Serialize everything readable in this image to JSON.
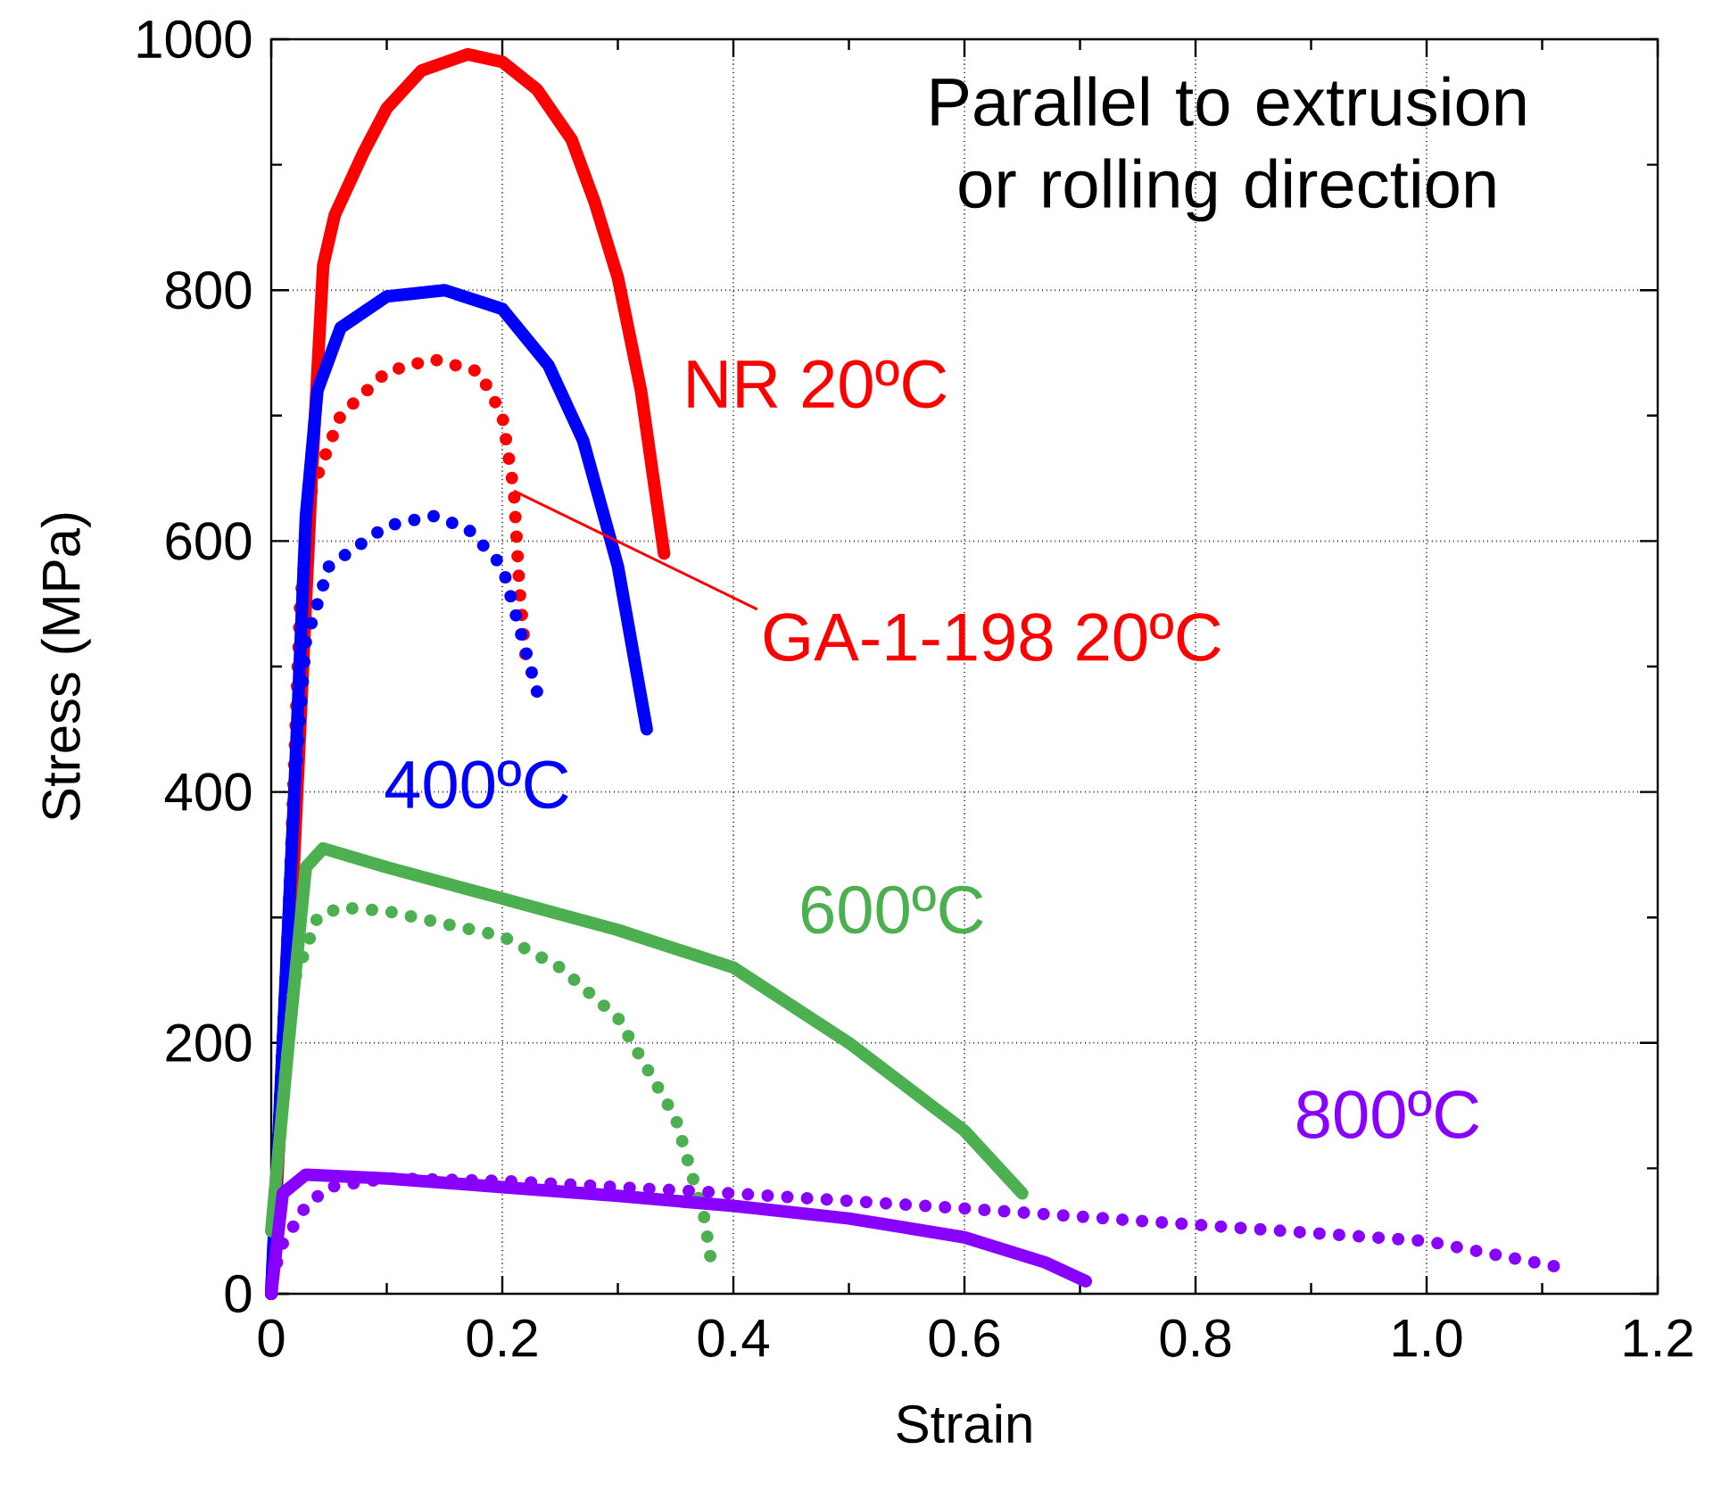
{
  "chart_data": {
    "type": "line",
    "title": "Parallel to extrusion or rolling direction",
    "xlabel": "Strain",
    "ylabel": "Stress (MPa)",
    "xlim": [
      0,
      1.2
    ],
    "ylim": [
      0,
      1000
    ],
    "xticks": [
      0,
      0.2,
      0.4,
      0.6,
      0.8,
      {
        "value": 1,
        "label": "1.0"
      },
      1.2
    ],
    "yticks": [
      0,
      200,
      400,
      600,
      800,
      1000
    ],
    "grid": true,
    "series": [
      {
        "name": "NR 20ºC",
        "color": "#ff0000",
        "line_style": "solid",
        "x": [
          0,
          0.02,
          0.035,
          0.045,
          0.055,
          0.08,
          0.1,
          0.13,
          0.17,
          0.2,
          0.23,
          0.26,
          0.28,
          0.3,
          0.32,
          0.34
        ],
        "values": [
          0,
          350,
          650,
          820,
          860,
          910,
          945,
          975,
          988,
          982,
          960,
          920,
          870,
          810,
          720,
          590
        ]
      },
      {
        "color": "#ff0000",
        "line_style": "dotted",
        "x": [
          0,
          0.015,
          0.025,
          0.035,
          0.06,
          0.1,
          0.14,
          0.18,
          0.2,
          0.21,
          0.215,
          0.22
        ],
        "values": [
          0,
          300,
          550,
          640,
          700,
          735,
          745,
          735,
          700,
          640,
          560,
          510
        ]
      },
      {
        "name": "400ºC",
        "color": "#0000ff",
        "line_style": "solid",
        "x": [
          0,
          0.02,
          0.03,
          0.04,
          0.06,
          0.1,
          0.15,
          0.2,
          0.24,
          0.27,
          0.3,
          0.325
        ],
        "values": [
          0,
          400,
          620,
          720,
          770,
          795,
          800,
          785,
          740,
          680,
          580,
          450
        ]
      },
      {
        "color": "#0000ff",
        "line_style": "dotted",
        "x": [
          0,
          0.01,
          0.02,
          0.03,
          0.05,
          0.1,
          0.14,
          0.17,
          0.2,
          0.215,
          0.23
        ],
        "values": [
          0,
          200,
          400,
          520,
          580,
          612,
          620,
          610,
          580,
          530,
          480
        ]
      },
      {
        "name": "600ºC",
        "color": "#4caf50",
        "line_style": "solid",
        "x": [
          0,
          0.015,
          0.03,
          0.045,
          0.1,
          0.2,
          0.3,
          0.4,
          0.5,
          0.6,
          0.65
        ],
        "values": [
          50,
          200,
          340,
          355,
          340,
          315,
          290,
          260,
          200,
          130,
          80
        ]
      },
      {
        "color": "#4caf50",
        "line_style": "dotted",
        "x": [
          0,
          0.02,
          0.04,
          0.06,
          0.1,
          0.2,
          0.25,
          0.3,
          0.35,
          0.375,
          0.38
        ],
        "values": [
          50,
          250,
          300,
          308,
          305,
          285,
          260,
          220,
          140,
          60,
          30
        ]
      },
      {
        "color": "#8800ff",
        "line_style": "solid",
        "x": [
          0,
          0.01,
          0.03,
          0.1,
          0.2,
          0.3,
          0.4,
          0.5,
          0.6,
          0.67,
          0.705
        ],
        "values": [
          0,
          80,
          95,
          92,
          85,
          78,
          70,
          60,
          45,
          25,
          10
        ]
      },
      {
        "name": "800ºC",
        "color": "#8800ff",
        "line_style": "dotted",
        "x": [
          0,
          0.01,
          0.03,
          0.05,
          0.1,
          0.2,
          0.4,
          0.6,
          0.8,
          1.0,
          1.11
        ],
        "values": [
          10,
          40,
          70,
          85,
          92,
          90,
          80,
          68,
          55,
          42,
          22
        ]
      }
    ],
    "annotations": [
      {
        "text": "GA-1-198 20ºC",
        "x": 0.21,
        "y": 640
      }
    ]
  }
}
